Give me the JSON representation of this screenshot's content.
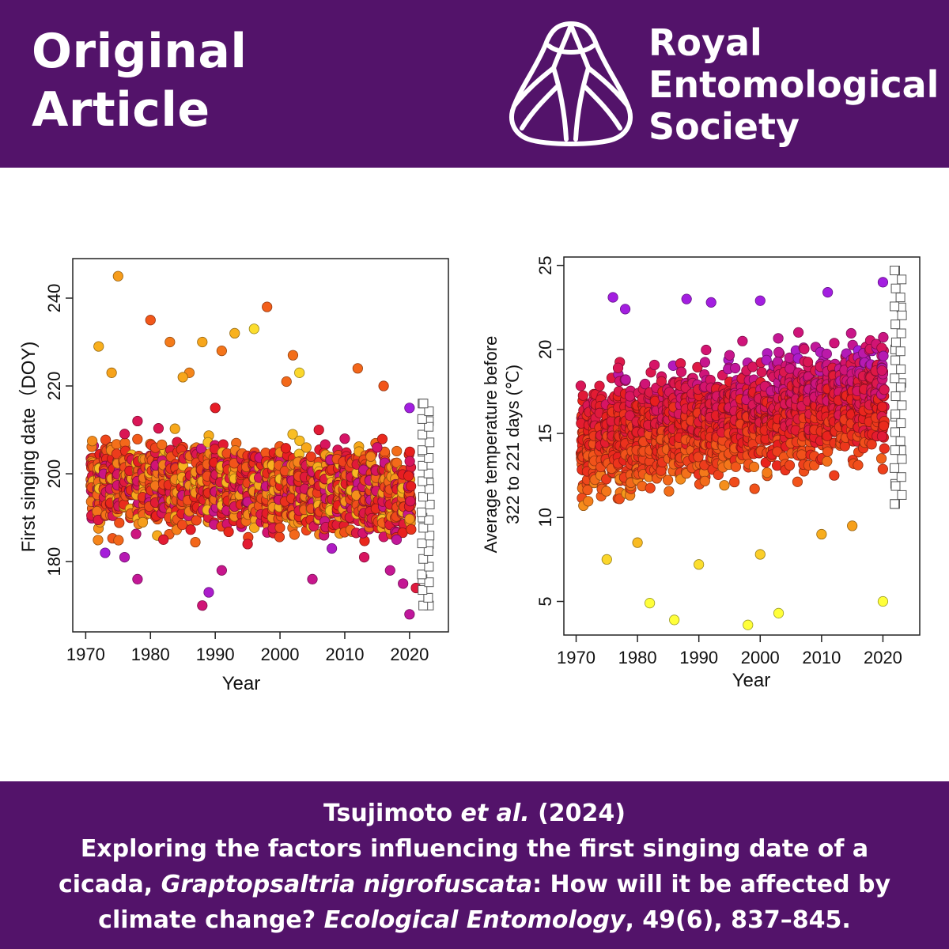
{
  "header": {
    "title_line1": "Original",
    "title_line2": "Article",
    "logo_icon": "cicada-wing-icon",
    "logo_line1": "Royal",
    "logo_line2": "Entomological",
    "logo_line3": "Society"
  },
  "citation": {
    "authors": "Tsujimoto",
    "etal": "et al.",
    "year": "(2024)",
    "title_part1": "Exploring the factors influencing the first singing date of a",
    "title_part2": "cicada, ",
    "species": "Graptopsaltria nigrofuscata",
    "title_part3": ": How will it be affected by",
    "title_part4": "climate change? ",
    "journal": "Ecological Entomology",
    "volume_pages": ", 49(6), 837–845."
  },
  "colors": {
    "banner": "#53136a",
    "gradient": [
      "#ffff3a",
      "#f7a81b",
      "#f2561a",
      "#e81e1e",
      "#d4136e",
      "#a31ee0"
    ],
    "future_marker": "#ffffff"
  },
  "chart_data": [
    {
      "type": "scatter",
      "xlabel": "Year",
      "ylabel": "First singing date（DOY)",
      "xlim": [
        1968,
        2026
      ],
      "ylim": [
        164,
        249
      ],
      "xticks": [
        1970,
        1980,
        1990,
        2000,
        2010,
        2020
      ],
      "yticks": [
        180,
        200,
        220,
        240
      ],
      "grid": false,
      "legend": "none",
      "series": [
        {
          "marker": "filled-circle",
          "color_scale": "yellow-orange-red-magenta-purple",
          "points": [
            [
              1975,
              245
            ],
            [
              1998,
              238
            ],
            [
              1980,
              235
            ],
            [
              1996,
              233
            ],
            [
              1993,
              232
            ],
            [
              1972,
              229
            ],
            [
              1983,
              230
            ],
            [
              1988,
              230
            ],
            [
              1991,
              228
            ],
            [
              2002,
              227
            ],
            [
              1974,
              223
            ],
            [
              1986,
              223
            ],
            [
              2012,
              224
            ],
            [
              2016,
              220
            ],
            [
              1985,
              222
            ],
            [
              2001,
              221
            ],
            [
              2003,
              223
            ],
            [
              1978,
              212
            ],
            [
              1990,
              215
            ],
            [
              2006,
              210
            ],
            [
              2010,
              208
            ],
            [
              2015,
              206
            ],
            [
              2020,
              215
            ],
            [
              1976,
              181
            ],
            [
              1978,
              176
            ],
            [
              1988,
              170
            ],
            [
              1989,
              173
            ],
            [
              1991,
              178
            ],
            [
              2005,
              176
            ],
            [
              2013,
              181
            ],
            [
              2017,
              178
            ],
            [
              2019,
              175
            ],
            [
              2020,
              168
            ],
            [
              2021,
              174
            ],
            [
              1973,
              182
            ],
            [
              1982,
              185
            ],
            [
              1995,
              184
            ],
            [
              2008,
              183
            ],
            [
              2018,
              185
            ]
          ]
        },
        {
          "marker": "open-square",
          "label": "",
          "points": [
            [
              2022,
              216
            ],
            [
              2023,
              212
            ],
            [
              2022,
              205
            ],
            [
              2023,
              198
            ],
            [
              2022,
              190
            ],
            [
              2023,
              184
            ],
            [
              2022,
              176
            ],
            [
              2023,
              170
            ]
          ]
        }
      ],
      "density_summary": "Most points fall between DOY 180 and 215 for every year 1970-2020; future projections (open squares) span roughly 170-216 at 2022-2023."
    },
    {
      "type": "scatter",
      "xlabel": "Year",
      "ylabel": "Average temperature before 322 to 221 days (℃)",
      "ylabel_line1": "Average temperature before",
      "ylabel_line2": "322 to 221 days (℃)",
      "xlim": [
        1968,
        2026
      ],
      "ylim": [
        3,
        25.5
      ],
      "xticks": [
        1970,
        1980,
        1990,
        2000,
        2010,
        2020
      ],
      "yticks": [
        5,
        10,
        15,
        20,
        25
      ],
      "grid": false,
      "legend": "none",
      "series": [
        {
          "marker": "filled-circle",
          "color_scale": "yellow-orange-red-magenta-purple",
          "points": [
            [
              1976,
              23.1
            ],
            [
              1978,
              22.4
            ],
            [
              1988,
              23.0
            ],
            [
              1992,
              22.8
            ],
            [
              2000,
              22.9
            ],
            [
              2011,
              23.4
            ],
            [
              2020,
              24.0
            ],
            [
              1982,
              4.9
            ],
            [
              1986,
              3.9
            ],
            [
              1998,
              3.6
            ],
            [
              2003,
              4.3
            ],
            [
              2020,
              5.0
            ],
            [
              1975,
              7.5
            ],
            [
              1980,
              8.5
            ],
            [
              1990,
              7.2
            ],
            [
              2000,
              7.8
            ],
            [
              2010,
              9.0
            ],
            [
              2015,
              9.5
            ]
          ]
        },
        {
          "marker": "open-square",
          "label": "",
          "points": [
            [
              2022,
              24.7
            ],
            [
              2023,
              22.5
            ],
            [
              2022,
              20.0
            ],
            [
              2023,
              18.0
            ],
            [
              2022,
              16.0
            ],
            [
              2023,
              14.0
            ],
            [
              2022,
              12.0
            ],
            [
              2022,
              10.8
            ]
          ]
        }
      ],
      "density_summary": "Dense band from about 13 to 21 ℃, rising gradually with year; cooler points (yellow) spread down to 4-12 ℃."
    }
  ]
}
